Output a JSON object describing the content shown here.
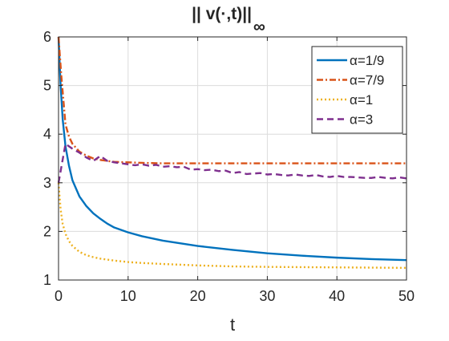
{
  "chart_data": {
    "type": "line",
    "title": "|| v(·,t)||",
    "title_subscript": "∞",
    "xlabel": "t",
    "ylabel": "",
    "xlim": [
      0,
      50
    ],
    "ylim": [
      1,
      6
    ],
    "xticks": [
      0,
      10,
      20,
      30,
      40,
      50
    ],
    "yticks": [
      1,
      2,
      3,
      4,
      5,
      6
    ],
    "grid": true,
    "legend_position": "top-right",
    "series": [
      {
        "name": "α=1/9",
        "color": "#0072BD",
        "style": "solid",
        "x": [
          0,
          0.3,
          0.6,
          1,
          1.5,
          2,
          3,
          4,
          5,
          6,
          7,
          8,
          10,
          12,
          15,
          20,
          25,
          30,
          35,
          40,
          45,
          50
        ],
        "y": [
          6.0,
          5.0,
          4.3,
          3.75,
          3.35,
          3.05,
          2.72,
          2.52,
          2.37,
          2.26,
          2.16,
          2.08,
          1.98,
          1.9,
          1.81,
          1.7,
          1.62,
          1.55,
          1.5,
          1.46,
          1.43,
          1.41
        ]
      },
      {
        "name": "α=7/9",
        "color": "#D95319",
        "style": "dashdot",
        "x": [
          0,
          0.4,
          1,
          1.5,
          2,
          3,
          4,
          5,
          6,
          7,
          8,
          10,
          12,
          15,
          20,
          30,
          40,
          50
        ],
        "y": [
          6.0,
          5.2,
          4.2,
          3.95,
          3.8,
          3.64,
          3.56,
          3.5,
          3.47,
          3.45,
          3.43,
          3.42,
          3.41,
          3.4,
          3.4,
          3.4,
          3.4,
          3.4
        ]
      },
      {
        "name": "α=1",
        "color": "#EDB120",
        "style": "dotted",
        "x": [
          0,
          0.3,
          0.6,
          1,
          1.5,
          2,
          3,
          4,
          5,
          6,
          8,
          10,
          12,
          15,
          20,
          25,
          30,
          40,
          50
        ],
        "y": [
          3.0,
          2.45,
          2.15,
          1.95,
          1.8,
          1.7,
          1.58,
          1.51,
          1.47,
          1.44,
          1.4,
          1.37,
          1.35,
          1.33,
          1.3,
          1.28,
          1.27,
          1.26,
          1.25
        ]
      },
      {
        "name": "α=3",
        "color": "#7E2F8E",
        "style": "dashed",
        "x": [
          0,
          0.5,
          1,
          1.5,
          2,
          3,
          4,
          5,
          6,
          7,
          8,
          9,
          10,
          11,
          12,
          13,
          14,
          15,
          16,
          17,
          18,
          19,
          20,
          21,
          22,
          23,
          24,
          25,
          26,
          27,
          28,
          29,
          30,
          31,
          32,
          33,
          34,
          35,
          36,
          37,
          38,
          39,
          40,
          41,
          42,
          43,
          44,
          45,
          46,
          47,
          48,
          49,
          50
        ],
        "y": [
          3.0,
          3.4,
          3.8,
          3.75,
          3.7,
          3.62,
          3.52,
          3.45,
          3.55,
          3.45,
          3.42,
          3.4,
          3.38,
          3.36,
          3.38,
          3.35,
          3.37,
          3.33,
          3.34,
          3.32,
          3.33,
          3.27,
          3.28,
          3.26,
          3.27,
          3.24,
          3.25,
          3.2,
          3.22,
          3.18,
          3.19,
          3.2,
          3.17,
          3.18,
          3.16,
          3.15,
          3.17,
          3.15,
          3.14,
          3.16,
          3.13,
          3.12,
          3.14,
          3.12,
          3.12,
          3.11,
          3.1,
          3.1,
          3.12,
          3.1,
          3.09,
          3.11,
          3.09
        ]
      }
    ]
  }
}
